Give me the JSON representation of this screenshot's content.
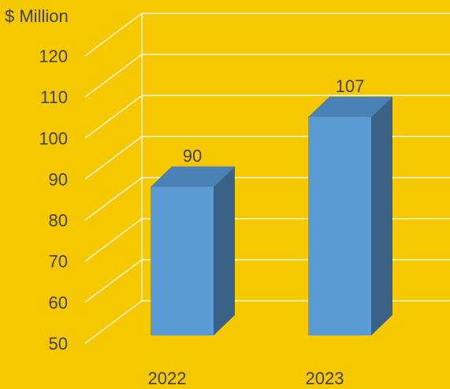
{
  "colors": {
    "background": "#F5C800",
    "grid": "#FFFFFF",
    "bar_front": "#5B9BD5",
    "bar_side": "#3A6186",
    "bar_top": "#4A82B8",
    "text": "#404040"
  },
  "chart_data": {
    "type": "bar",
    "style": "3d-column",
    "unit_label": "$ Million",
    "categories": [
      "2022",
      "2023"
    ],
    "values": [
      90,
      107
    ],
    "data_labels": [
      "90",
      "107"
    ],
    "ylim": [
      50,
      120
    ],
    "yticks": [
      "50",
      "60",
      "70",
      "80",
      "90",
      "100",
      "110",
      "120"
    ],
    "grid": true,
    "legend": "none"
  }
}
